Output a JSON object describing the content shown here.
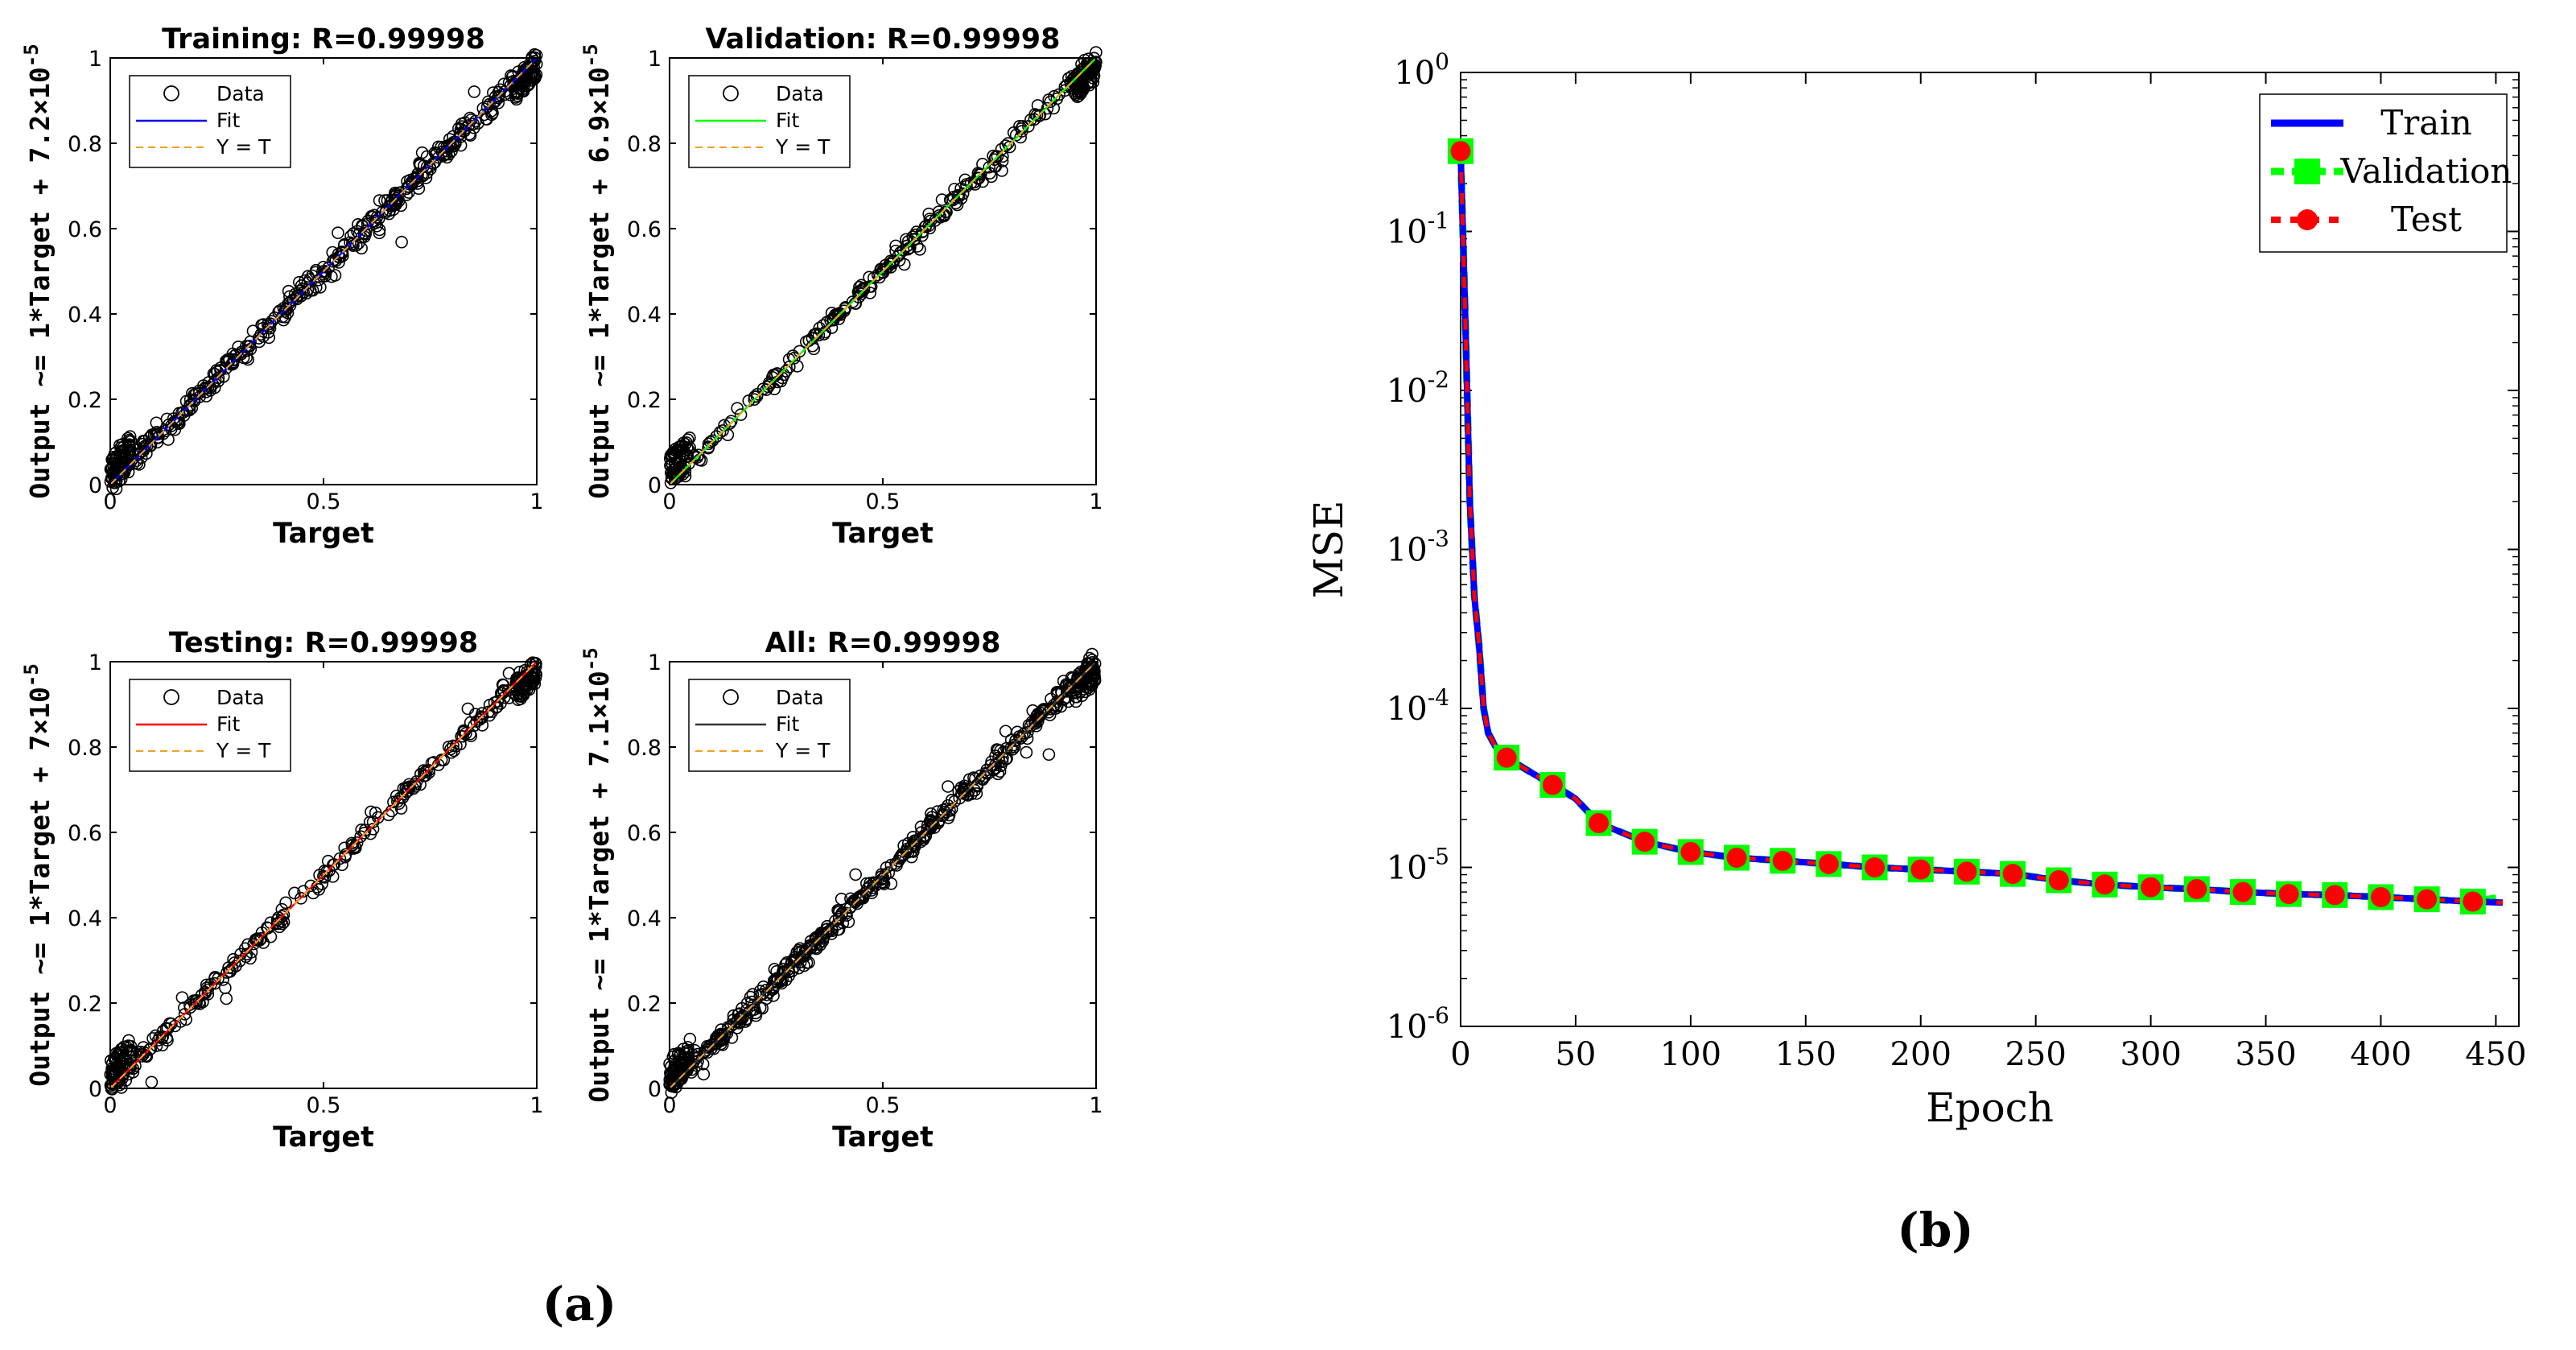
{
  "figure": {
    "panel_a_label": "(a)",
    "panel_b_label": "(b)"
  },
  "colors": {
    "axis": "#000000",
    "data_marker": "#000000",
    "ideal_line": "#f5a020",
    "train": "#0000ff",
    "validation": "#00ff00",
    "test": "#ff0000"
  },
  "chart_data": [
    {
      "type": "scatter",
      "id": "training",
      "title": "Training: R=0.99998",
      "xlabel": "Target",
      "ylabel": "Output ~= 1*Target + 7.2×10",
      "ylabel_exp": "-5",
      "xlim": [
        0,
        1
      ],
      "ylim": [
        0,
        1
      ],
      "xticks": [
        "0",
        "0.5",
        "1"
      ],
      "yticks": [
        "0",
        "0.2",
        "0.4",
        "0.6",
        "0.8",
        "1"
      ],
      "legend": [
        "Data",
        "Fit",
        "Y = T"
      ],
      "fit": {
        "slope": 1,
        "intercept": 7.2e-05,
        "color": "#0000ff"
      },
      "noise": 0.035,
      "n_points": 420
    },
    {
      "type": "scatter",
      "id": "validation",
      "title": "Validation: R=0.99998",
      "xlabel": "Target",
      "ylabel": "Output ~= 1*Target + 6.9×10",
      "ylabel_exp": "-5",
      "xlim": [
        0,
        1
      ],
      "ylim": [
        0,
        1
      ],
      "xticks": [
        "0",
        "0.5",
        "1"
      ],
      "yticks": [
        "0",
        "0.2",
        "0.4",
        "0.6",
        "0.8",
        "1"
      ],
      "legend": [
        "Data",
        "Fit",
        "Y = T"
      ],
      "fit": {
        "slope": 1,
        "intercept": 6.9e-05,
        "color": "#00ff00"
      },
      "noise": 0.03,
      "n_points": 260
    },
    {
      "type": "scatter",
      "id": "testing",
      "title": "Testing: R=0.99998",
      "xlabel": "Target",
      "ylabel": "Output ~= 1*Target + 7×10",
      "ylabel_exp": "-5",
      "xlim": [
        0,
        1
      ],
      "ylim": [
        0,
        1
      ],
      "xticks": [
        "0",
        "0.5",
        "1"
      ],
      "yticks": [
        "0",
        "0.2",
        "0.4",
        "0.6",
        "0.8",
        "1"
      ],
      "legend": [
        "Data",
        "Fit",
        "Y = T"
      ],
      "fit": {
        "slope": 1,
        "intercept": 7e-05,
        "color": "#ff0000"
      },
      "noise": 0.03,
      "n_points": 260
    },
    {
      "type": "scatter",
      "id": "all",
      "title": "All: R=0.99998",
      "xlabel": "Target",
      "ylabel": "Output ~= 1*Target + 7.1×10",
      "ylabel_exp": "-5",
      "xlim": [
        0,
        1
      ],
      "ylim": [
        0,
        1
      ],
      "xticks": [
        "0",
        "0.5",
        "1"
      ],
      "yticks": [
        "0",
        "0.2",
        "0.4",
        "0.6",
        "0.8",
        "1"
      ],
      "legend": [
        "Data",
        "Fit",
        "Y = T"
      ],
      "fit": {
        "slope": 1,
        "intercept": 7.1e-05,
        "color": "#333333"
      },
      "noise": 0.035,
      "n_points": 480
    },
    {
      "type": "line",
      "id": "mse",
      "xlabel": "Epoch",
      "ylabel": "MSE",
      "xlim": [
        0,
        460
      ],
      "ylim": [
        1e-06,
        1
      ],
      "yscale": "log",
      "xticks": [
        "0",
        "50",
        "100",
        "150",
        "200",
        "250",
        "300",
        "350",
        "400",
        "450"
      ],
      "ytick_exponents": [
        "0",
        "-1",
        "-2",
        "-3",
        "-4",
        "-5",
        "-6"
      ],
      "ytick_base": "10",
      "legend": [
        "Train",
        "Validation",
        "Test"
      ],
      "x": [
        0,
        2,
        4,
        6,
        8,
        10,
        12,
        15,
        20,
        30,
        40,
        45,
        50,
        60,
        80,
        100,
        120,
        140,
        160,
        180,
        200,
        220,
        240,
        260,
        280,
        300,
        320,
        340,
        360,
        380,
        400,
        420,
        440,
        453
      ],
      "series": [
        {
          "name": "Train",
          "values": [
            0.32,
            0.03,
            0.002,
            0.0005,
            0.00025,
            0.0001,
            7e-05,
            5.8e-05,
            4.9e-05,
            4e-05,
            3.3e-05,
            3e-05,
            2.7e-05,
            1.9e-05,
            1.45e-05,
            1.25e-05,
            1.15e-05,
            1.1e-05,
            1.05e-05,
            1e-05,
            9.7e-06,
            9.4e-06,
            9.1e-06,
            8.3e-06,
            7.8e-06,
            7.5e-06,
            7.3e-06,
            7e-06,
            6.8e-06,
            6.7e-06,
            6.5e-06,
            6.3e-06,
            6.1e-06,
            6e-06
          ]
        },
        {
          "name": "Validation",
          "values": [
            0.32,
            0.03,
            0.002,
            0.0005,
            0.00025,
            0.0001,
            7e-05,
            5.8e-05,
            4.9e-05,
            4e-05,
            3.3e-05,
            3e-05,
            2.7e-05,
            1.9e-05,
            1.45e-05,
            1.25e-05,
            1.15e-05,
            1.1e-05,
            1.05e-05,
            1e-05,
            9.7e-06,
            9.4e-06,
            9.1e-06,
            8.3e-06,
            7.8e-06,
            7.5e-06,
            7.3e-06,
            7e-06,
            6.8e-06,
            6.7e-06,
            6.5e-06,
            6.3e-06,
            6.1e-06,
            6.5e-06
          ]
        },
        {
          "name": "Test",
          "values": [
            0.32,
            0.03,
            0.002,
            0.0005,
            0.00025,
            0.0001,
            7e-05,
            5.8e-05,
            4.9e-05,
            4e-05,
            3.3e-05,
            3e-05,
            2.7e-05,
            1.9e-05,
            1.45e-05,
            1.25e-05,
            1.15e-05,
            1.1e-05,
            1.05e-05,
            1e-05,
            9.7e-06,
            9.4e-06,
            9.1e-06,
            8.3e-06,
            7.8e-06,
            7.5e-06,
            7.3e-06,
            7e-06,
            6.8e-06,
            6.7e-06,
            6.5e-06,
            6.3e-06,
            6.1e-06,
            6e-06
          ]
        }
      ],
      "marker_epochs": [
        0,
        20,
        40,
        60,
        80,
        100,
        120,
        140,
        160,
        180,
        200,
        220,
        240,
        260,
        280,
        300,
        320,
        340,
        360,
        380,
        400,
        420,
        440
      ]
    }
  ]
}
